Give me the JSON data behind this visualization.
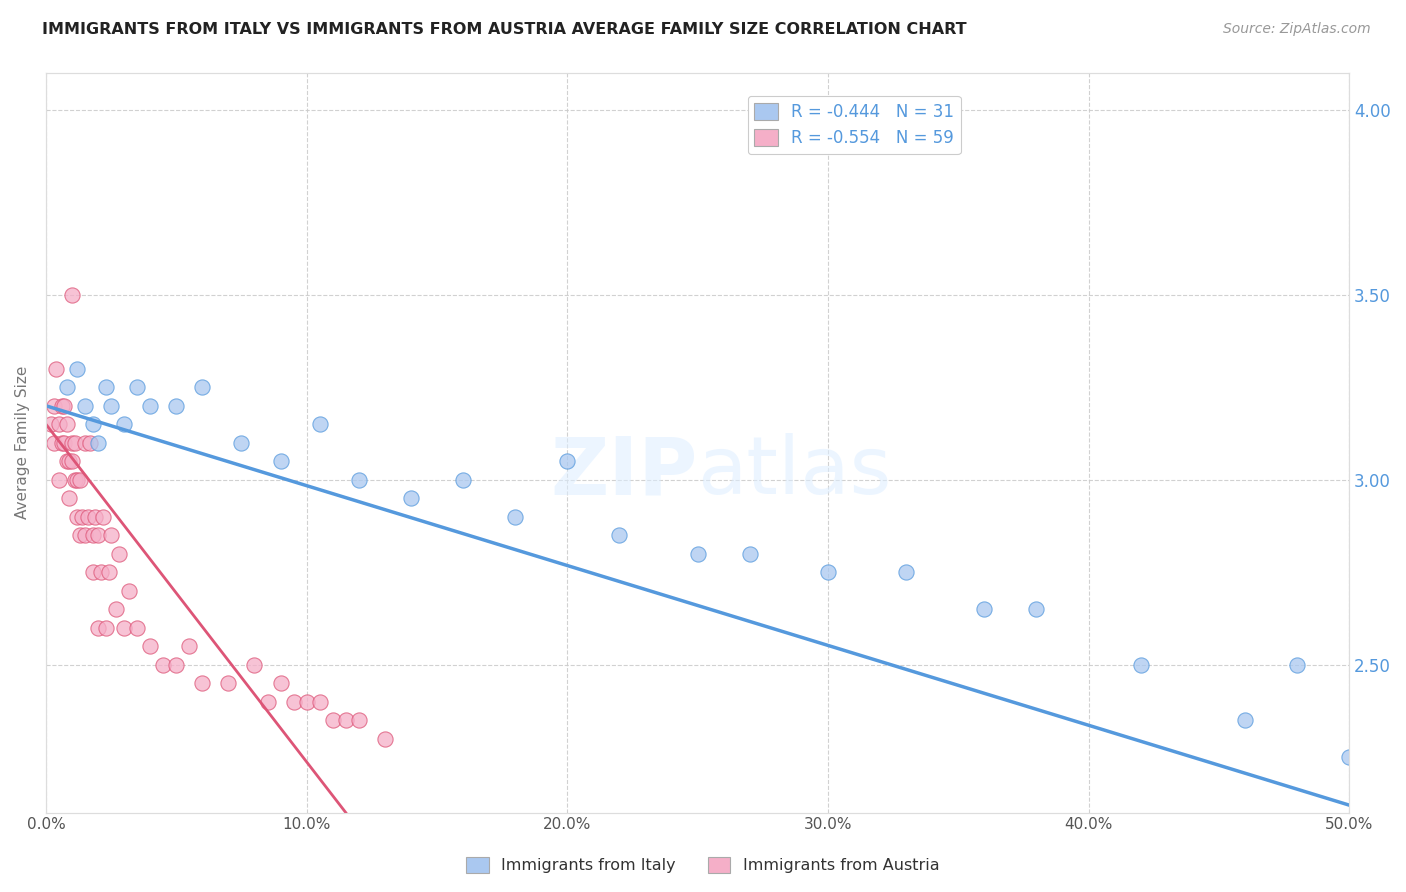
{
  "title": "IMMIGRANTS FROM ITALY VS IMMIGRANTS FROM AUSTRIA AVERAGE FAMILY SIZE CORRELATION CHART",
  "source": "Source: ZipAtlas.com",
  "ylabel": "Average Family Size",
  "xlim": [
    0.0,
    50.0
  ],
  "ylim": [
    2.1,
    4.1
  ],
  "yticks_right": [
    2.5,
    3.0,
    3.5,
    4.0
  ],
  "xticks": [
    0.0,
    10.0,
    20.0,
    30.0,
    40.0,
    50.0
  ],
  "legend_italy": "R = -0.444   N = 31",
  "legend_austria": "R = -0.554   N = 59",
  "italy_color": "#aac8f0",
  "austria_color": "#f5afc8",
  "italy_line_color": "#5599dd",
  "austria_line_color": "#dd5577",
  "italy_scatter_x": [
    0.8,
    1.2,
    1.5,
    1.8,
    2.0,
    2.3,
    2.5,
    3.0,
    3.5,
    4.0,
    5.0,
    6.0,
    7.5,
    9.0,
    10.5,
    12.0,
    14.0,
    16.0,
    18.0,
    20.0,
    22.0,
    25.0,
    27.0,
    30.0,
    33.0,
    36.0,
    38.0,
    42.0,
    46.0,
    48.0,
    50.0
  ],
  "italy_scatter_y": [
    3.25,
    3.3,
    3.2,
    3.15,
    3.1,
    3.25,
    3.2,
    3.15,
    3.25,
    3.2,
    3.2,
    3.25,
    3.1,
    3.05,
    3.15,
    3.0,
    2.95,
    3.0,
    2.9,
    3.05,
    2.85,
    2.8,
    2.8,
    2.75,
    2.75,
    2.65,
    2.65,
    2.5,
    2.35,
    2.5,
    2.25
  ],
  "austria_scatter_x": [
    0.2,
    0.3,
    0.3,
    0.4,
    0.5,
    0.5,
    0.6,
    0.6,
    0.7,
    0.7,
    0.8,
    0.8,
    0.9,
    0.9,
    1.0,
    1.0,
    1.0,
    1.1,
    1.1,
    1.2,
    1.2,
    1.3,
    1.3,
    1.4,
    1.5,
    1.5,
    1.6,
    1.7,
    1.8,
    1.8,
    1.9,
    2.0,
    2.0,
    2.1,
    2.2,
    2.3,
    2.4,
    2.5,
    2.7,
    2.8,
    3.0,
    3.2,
    3.5,
    4.0,
    4.5,
    5.0,
    5.5,
    6.0,
    7.0,
    8.0,
    8.5,
    9.0,
    9.5,
    10.0,
    10.5,
    11.0,
    11.5,
    12.0,
    13.0
  ],
  "austria_scatter_y": [
    3.15,
    3.1,
    3.2,
    3.3,
    3.15,
    3.0,
    3.1,
    3.2,
    3.1,
    3.2,
    3.05,
    3.15,
    2.95,
    3.05,
    3.5,
    3.05,
    3.1,
    3.0,
    3.1,
    3.0,
    2.9,
    2.85,
    3.0,
    2.9,
    2.85,
    3.1,
    2.9,
    3.1,
    2.85,
    2.75,
    2.9,
    2.6,
    2.85,
    2.75,
    2.9,
    2.6,
    2.75,
    2.85,
    2.65,
    2.8,
    2.6,
    2.7,
    2.6,
    2.55,
    2.5,
    2.5,
    2.55,
    2.45,
    2.45,
    2.5,
    2.4,
    2.45,
    2.4,
    2.4,
    2.4,
    2.35,
    2.35,
    2.35,
    2.3
  ],
  "italy_line_x": [
    0.0,
    50.0
  ],
  "italy_line_y": [
    3.2,
    2.12
  ],
  "austria_line_x": [
    0.0,
    11.5
  ],
  "austria_line_y": [
    3.15,
    2.1
  ],
  "watermark_zip": "ZIP",
  "watermark_atlas": "atlas",
  "background_color": "#ffffff",
  "grid_color": "#cccccc",
  "title_color": "#222222",
  "right_tick_color": "#5599dd",
  "scatter_size": 120
}
